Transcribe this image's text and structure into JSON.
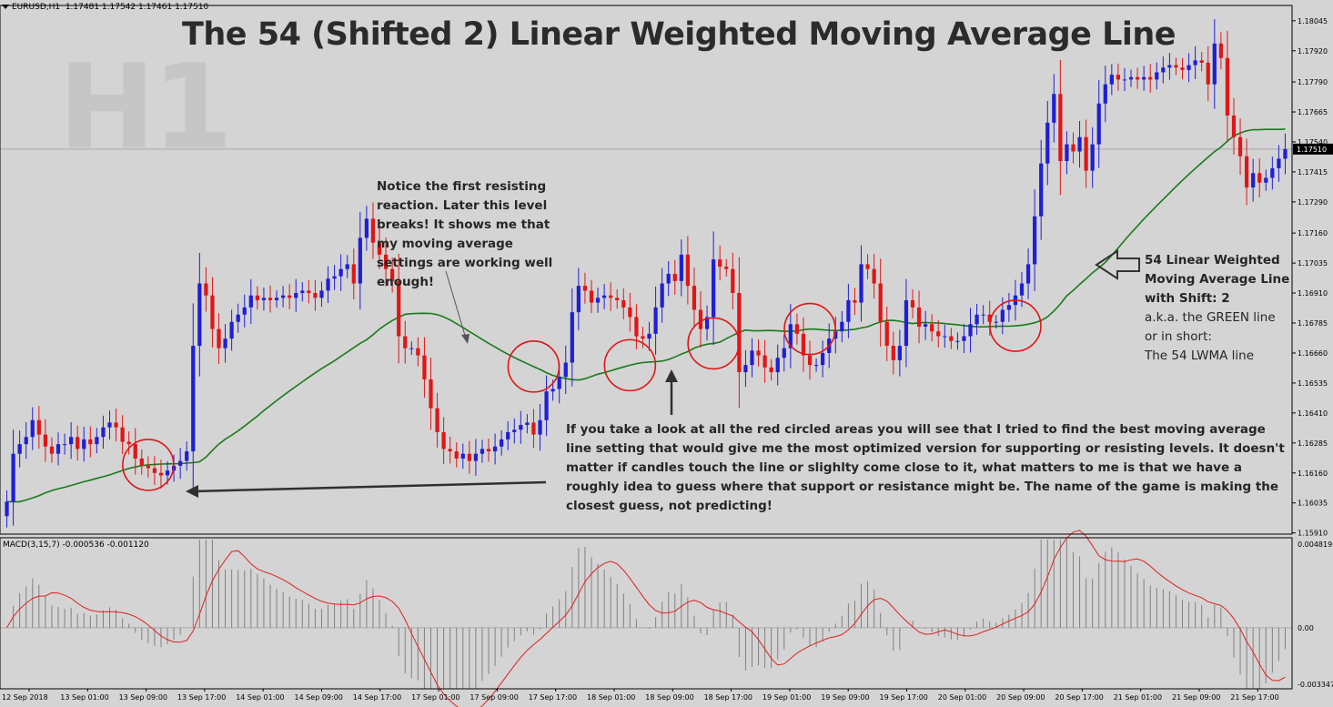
{
  "header": {
    "symbol_info": "EURUSD,H1  1.17481 1.17542 1.17461 1.17510"
  },
  "title": "The 54 (Shifted 2) Linear Weighted Moving Average Line",
  "watermark": "H1",
  "annotations": {
    "note1": "Notice the first resisting reaction. Later this level breaks! It shows me that my moving average settings are working well enough!",
    "note2": "If you take a look at all the red circled areas you will see that I tried to find the best moving average line setting that would give me the most optimized version for supporting or resisting levels. It doesn't matter if candles touch the line or slighlty come close to it, what matters to me is that we have a roughly idea to guess where that support or resistance might be. The name of the game is making the closest guess, not predicting!",
    "note3_bold": [
      "54 Linear Weighted",
      "Moving Average Line",
      "with Shift: 2"
    ],
    "note3_regular": [
      "a.k.a. the GREEN line",
      "or in short:",
      "The 54 LWMA line"
    ]
  },
  "indicator_label": "MACD(3,15,7) -0.000536 -0.001120",
  "colors": {
    "background": "#d4d4d4",
    "bull_candle": "#1f1fd6",
    "bear_candle": "#e01616",
    "lwma_line": "#1a7a1a",
    "macd_signal": "#e02020",
    "macd_hist": "#808080",
    "circle": "#e01616",
    "arrow": "#303030",
    "current_price_bg": "#000000"
  },
  "chart_data": [
    {
      "type": "candlestick",
      "title": "The 54 (Shifted 2) Linear Weighted Moving Average Line",
      "symbol": "EURUSD",
      "timeframe": "H1",
      "ylim": [
        1.15905,
        1.18105
      ],
      "y_ticks": [
        "1.18045",
        "1.17920",
        "1.17790",
        "1.17665",
        "1.17540",
        "1.17415",
        "1.17290",
        "1.17160",
        "1.17035",
        "1.16910",
        "1.16785",
        "1.16660",
        "1.16535",
        "1.16410",
        "1.16285",
        "1.16160",
        "1.16035",
        "1.15910"
      ],
      "current_price": "1.17510",
      "x_labels": [
        "12 Sep 2018",
        "13 Sep 01:00",
        "13 Sep 09:00",
        "13 Sep 17:00",
        "14 Sep 01:00",
        "14 Sep 09:00",
        "14 Sep 17:00",
        "17 Sep 01:00",
        "17 Sep 09:00",
        "17 Sep 17:00",
        "18 Sep 01:00",
        "18 Sep 09:00",
        "18 Sep 17:00",
        "19 Sep 01:00",
        "19 Sep 09:00",
        "19 Sep 17:00",
        "20 Sep 01:00",
        "20 Sep 09:00",
        "20 Sep 17:00",
        "21 Sep 01:00",
        "21 Sep 09:00",
        "21 Sep 17:00"
      ],
      "closes": [
        1.1604,
        1.1624,
        1.1628,
        1.1631,
        1.1638,
        1.1632,
        1.1627,
        1.1624,
        1.1628,
        1.1628,
        1.1631,
        1.1626,
        1.163,
        1.1628,
        1.1631,
        1.1635,
        1.1637,
        1.1635,
        1.1629,
        1.1628,
        1.1622,
        1.1619,
        1.1618,
        1.1616,
        1.1615,
        1.1617,
        1.1619,
        1.1621,
        1.1625,
        1.1669,
        1.1695,
        1.169,
        1.1676,
        1.1668,
        1.1672,
        1.1679,
        1.1682,
        1.1685,
        1.169,
        1.1688,
        1.1689,
        1.1688,
        1.1689,
        1.169,
        1.1689,
        1.1691,
        1.1692,
        1.1691,
        1.1689,
        1.1692,
        1.1697,
        1.1698,
        1.1701,
        1.1703,
        1.1695,
        1.1714,
        1.1722,
        1.1712,
        1.1707,
        1.1701,
        1.1696,
        1.1673,
        1.1668,
        1.1668,
        1.1665,
        1.1655,
        1.1643,
        1.1633,
        1.1626,
        1.1625,
        1.1622,
        1.1624,
        1.1621,
        1.1624,
        1.1626,
        1.1625,
        1.1627,
        1.163,
        1.1633,
        1.1634,
        1.1636,
        1.1637,
        1.1632,
        1.1638,
        1.165,
        1.1651,
        1.1656,
        1.1662,
        1.1683,
        1.1694,
        1.1692,
        1.1687,
        1.1689,
        1.169,
        1.1689,
        1.1688,
        1.1685,
        1.1681,
        1.1673,
        1.1672,
        1.1674,
        1.1685,
        1.1695,
        1.1699,
        1.1696,
        1.1707,
        1.1694,
        1.1684,
        1.1676,
        1.1681,
        1.1705,
        1.1702,
        1.1701,
        1.1691,
        1.1658,
        1.1661,
        1.1667,
        1.1665,
        1.166,
        1.1658,
        1.1664,
        1.1668,
        1.1678,
        1.1674,
        1.1665,
        1.1661,
        1.1661,
        1.1666,
        1.1672,
        1.1675,
        1.1679,
        1.1688,
        1.1687,
        1.1703,
        1.1701,
        1.1695,
        1.1679,
        1.1669,
        1.1663,
        1.1669,
        1.1688,
        1.1685,
        1.1677,
        1.1678,
        1.1675,
        1.1673,
        1.1673,
        1.1671,
        1.1671,
        1.1673,
        1.1678,
        1.1682,
        1.1682,
        1.1679,
        1.1679,
        1.1684,
        1.1686,
        1.169,
        1.1695,
        1.1703,
        1.1723,
        1.1745,
        1.1762,
        1.1774,
        1.1746,
        1.1753,
        1.175,
        1.1756,
        1.1742,
        1.1753,
        1.177,
        1.1778,
        1.1782,
        1.178,
        1.178,
        1.1781,
        1.178,
        1.1781,
        1.178,
        1.1783,
        1.1785,
        1.1786,
        1.1785,
        1.1784,
        1.1786,
        1.1788,
        1.1787,
        1.1778,
        1.1795,
        1.1789,
        1.1765,
        1.1756,
        1.1748,
        1.1735,
        1.1741,
        1.1737,
        1.1739,
        1.1743,
        1.1747,
        1.1751
      ],
      "lwma_range": [
        1.15925,
        1.17525
      ],
      "circled_areas": [
        "13 Sep 05:00",
        "17 Sep 09:00",
        "18 Sep 07:00",
        "18 Sep 13:00",
        "19 Sep 09:00",
        "20 Sep 09:00"
      ]
    },
    {
      "type": "bar+line",
      "title": "MACD(3,15,7) -0.000536 -0.001120",
      "ylim": [
        -0.00334,
        0.00482
      ],
      "y_ticks": [
        "0.004819",
        "0.00",
        "-0.003347"
      ],
      "histogram_range": [
        -0.0033,
        0.0047
      ],
      "signal_range": [
        -0.003,
        0.0035
      ]
    }
  ]
}
